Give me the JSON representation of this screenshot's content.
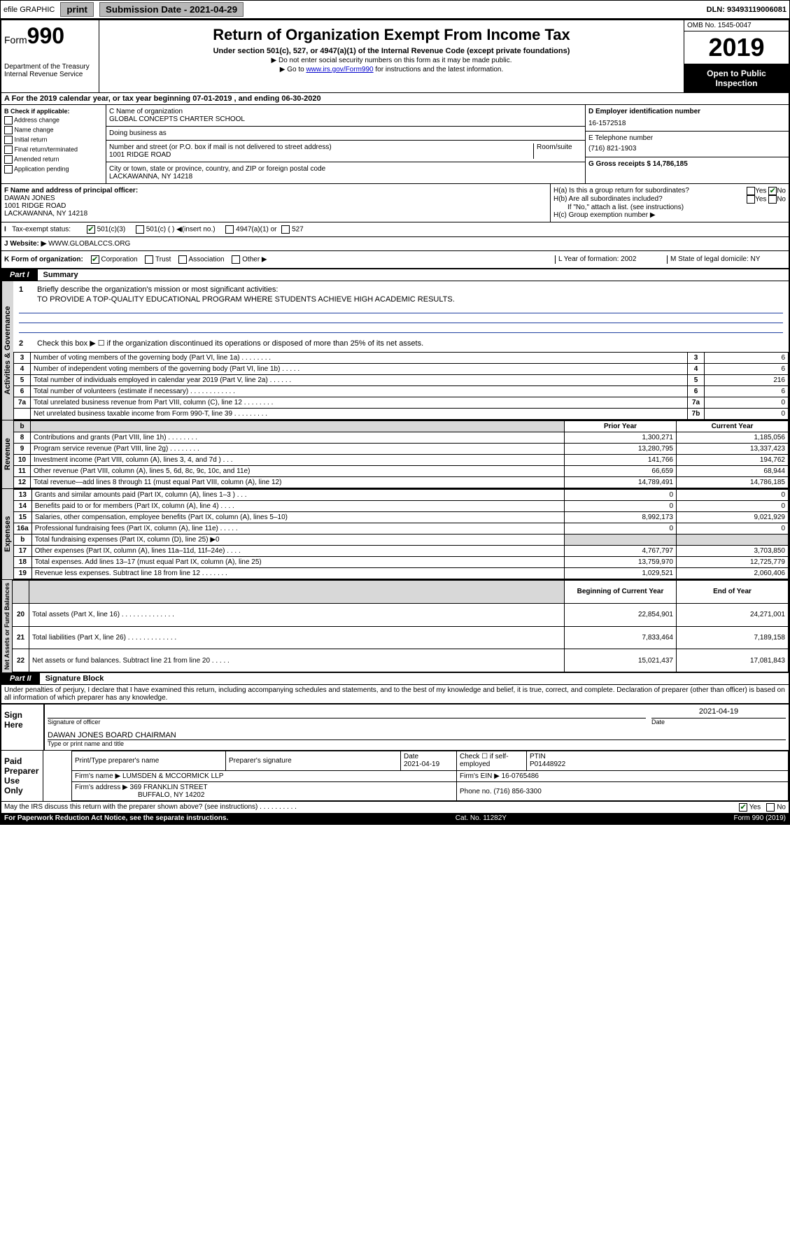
{
  "topbar": {
    "efile_label": "efile GRAPHIC",
    "print_label": "print",
    "submission_label": "Submission Date - 2021-04-29",
    "dln_label": "DLN: 93493119006081"
  },
  "header": {
    "form_prefix": "Form",
    "form_number": "990",
    "dept": "Department of the Treasury\nInternal Revenue Service",
    "title": "Return of Organization Exempt From Income Tax",
    "subtitle": "Under section 501(c), 527, or 4947(a)(1) of the Internal Revenue Code (except private foundations)",
    "note1": "▶ Do not enter social security numbers on this form as it may be made public.",
    "note2_prefix": "▶ Go to ",
    "note2_link": "www.irs.gov/Form990",
    "note2_suffix": " for instructions and the latest information.",
    "omb": "OMB No. 1545-0047",
    "year": "2019",
    "otp": "Open to Public Inspection"
  },
  "rowA": {
    "text": "A For the 2019 calendar year, or tax year beginning 07-01-2019   , and ending 06-30-2020"
  },
  "checkB": {
    "header": "B Check if applicable:",
    "items": [
      "Address change",
      "Name change",
      "Initial return",
      "Final return/terminated",
      "Amended return",
      "Application pending"
    ]
  },
  "colC": {
    "name_label": "C Name of organization",
    "name": "GLOBAL CONCEPTS CHARTER SCHOOL",
    "dba_label": "Doing business as",
    "addr_label": "Number and street (or P.O. box if mail is not delivered to street address)",
    "room_label": "Room/suite",
    "addr": "1001 RIDGE ROAD",
    "city_label": "City or town, state or province, country, and ZIP or foreign postal code",
    "city": "LACKAWANNA, NY  14218"
  },
  "colDE": {
    "d_label": "D Employer identification number",
    "d_val": "16-1572518",
    "e_label": "E Telephone number",
    "e_val": "(716) 821-1903",
    "g_label": "G Gross receipts $ 14,786,185"
  },
  "rowF": {
    "f_label": "F  Name and address of principal officer:",
    "f_name": "DAWAN JONES",
    "f_addr": "1001 RIDGE ROAD\nLACKAWANNA, NY  14218",
    "ha_label": "H(a)  Is this a group return for subordinates?",
    "hb_label": "H(b)  Are all subordinates included?",
    "hc_note": "If \"No,\" attach a list. (see instructions)",
    "hc_label": "H(c)  Group exemption number ▶",
    "yes": "Yes",
    "no": "No"
  },
  "rowI": {
    "label": "Tax-exempt status:",
    "opts": [
      "501(c)(3)",
      "501(c) (  ) ◀(insert no.)",
      "4947(a)(1) or",
      "527"
    ]
  },
  "rowJ": {
    "label": "J Website: ▶",
    "val": "WWW.GLOBALCCS.ORG"
  },
  "rowK": {
    "k_label": "K Form of organization:",
    "k_opts": [
      "Corporation",
      "Trust",
      "Association",
      "Other ▶"
    ],
    "l_label": "L Year of formation: 2002",
    "m_label": "M State of legal domicile: NY"
  },
  "part1": {
    "tab": "Part I",
    "title": "Summary"
  },
  "governance": {
    "label": "Activities & Governance",
    "q1_num": "1",
    "q1_text": "Briefly describe the organization's mission or most significant activities:",
    "q1_val": "TO PROVIDE A TOP-QUALITY EDUCATIONAL PROGRAM WHERE STUDENTS ACHIEVE HIGH ACADEMIC RESULTS.",
    "q2_num": "2",
    "q2_text": "Check this box ▶ ☐  if the organization discontinued its operations or disposed of more than 25% of its net assets.",
    "rows": [
      {
        "n": "3",
        "t": "Number of voting members of the governing body (Part VI, line 1a)  .     .     .     .     .     .     .     .",
        "b": "3",
        "v": "6"
      },
      {
        "n": "4",
        "t": "Number of independent voting members of the governing body (Part VI, line 1b)  .     .     .     .     .",
        "b": "4",
        "v": "6"
      },
      {
        "n": "5",
        "t": "Total number of individuals employed in calendar year 2019 (Part V, line 2a)  .     .     .     .     .     .",
        "b": "5",
        "v": "216"
      },
      {
        "n": "6",
        "t": "Total number of volunteers (estimate if necessary)  .     .     .     .     .     .     .     .     .     .     .     .",
        "b": "6",
        "v": "6"
      },
      {
        "n": "7a",
        "t": "Total unrelated business revenue from Part VIII, column (C), line 12  .     .     .     .     .     .     .     .",
        "b": "7a",
        "v": "0"
      },
      {
        "n": "",
        "t": "Net unrelated business taxable income from Form 990-T, line 39  .     .     .     .     .     .     .     .     .",
        "b": "7b",
        "v": "0"
      }
    ]
  },
  "revenue": {
    "label": "Revenue",
    "col_prior": "Prior Year",
    "col_current": "Current Year",
    "rows": [
      {
        "n": "8",
        "t": "Contributions and grants (Part VIII, line 1h)  .     .     .     .     .     .     .     .",
        "p": "1,300,271",
        "c": "1,185,056"
      },
      {
        "n": "9",
        "t": "Program service revenue (Part VIII, line 2g)  .     .     .     .     .     .     .     .",
        "p": "13,280,795",
        "c": "13,337,423"
      },
      {
        "n": "10",
        "t": "Investment income (Part VIII, column (A), lines 3, 4, and 7d )  .     .     .",
        "p": "141,766",
        "c": "194,762"
      },
      {
        "n": "11",
        "t": "Other revenue (Part VIII, column (A), lines 5, 6d, 8c, 9c, 10c, and 11e)",
        "p": "66,659",
        "c": "68,944"
      },
      {
        "n": "12",
        "t": "Total revenue—add lines 8 through 11 (must equal Part VIII, column (A), line 12)",
        "p": "14,789,491",
        "c": "14,786,185"
      }
    ]
  },
  "expenses": {
    "label": "Expenses",
    "rows": [
      {
        "n": "13",
        "t": "Grants and similar amounts paid (Part IX, column (A), lines 1–3 )  .     .     .",
        "p": "0",
        "c": "0"
      },
      {
        "n": "14",
        "t": "Benefits paid to or for members (Part IX, column (A), line 4)  .     .     .     .",
        "p": "0",
        "c": "0"
      },
      {
        "n": "15",
        "t": "Salaries, other compensation, employee benefits (Part IX, column (A), lines 5–10)",
        "p": "8,992,173",
        "c": "9,021,929"
      },
      {
        "n": "16a",
        "t": "Professional fundraising fees (Part IX, column (A), line 11e)  .     .     .     .     .",
        "p": "0",
        "c": "0"
      },
      {
        "n": "b",
        "t": "Total fundraising expenses (Part IX, column (D), line 25) ▶0",
        "p": "",
        "c": "",
        "gray": true
      },
      {
        "n": "17",
        "t": "Other expenses (Part IX, column (A), lines 11a–11d, 11f–24e)  .     .     .     .",
        "p": "4,767,797",
        "c": "3,703,850"
      },
      {
        "n": "18",
        "t": "Total expenses. Add lines 13–17 (must equal Part IX, column (A), line 25)",
        "p": "13,759,970",
        "c": "12,725,779"
      },
      {
        "n": "19",
        "t": "Revenue less expenses. Subtract line 18 from line 12  .     .     .     .     .     .     .",
        "p": "1,029,521",
        "c": "2,060,406"
      }
    ]
  },
  "netassets": {
    "label": "Net Assets or Fund Balances",
    "col_begin": "Beginning of Current Year",
    "col_end": "End of Year",
    "rows": [
      {
        "n": "20",
        "t": "Total assets (Part X, line 16)  .     .     .     .     .     .     .     .     .     .     .     .     .     .",
        "p": "22,854,901",
        "c": "24,271,001"
      },
      {
        "n": "21",
        "t": "Total liabilities (Part X, line 26)  .     .     .     .     .     .     .     .     .     .     .     .     .",
        "p": "7,833,464",
        "c": "7,189,158"
      },
      {
        "n": "22",
        "t": "Net assets or fund balances. Subtract line 21 from line 20  .     .     .     .     .",
        "p": "15,021,437",
        "c": "17,081,843"
      }
    ]
  },
  "part2": {
    "tab": "Part II",
    "title": "Signature Block",
    "perjury": "Under penalties of perjury, I declare that I have examined this return, including accompanying schedules and statements, and to the best of my knowledge and belief, it is true, correct, and complete. Declaration of preparer (other than officer) is based on all information of which preparer has any knowledge."
  },
  "sign": {
    "label": "Sign Here",
    "sig_label": "Signature of officer",
    "date": "2021-04-19",
    "date_label": "Date",
    "name": "DAWAN JONES BOARD CHAIRMAN",
    "name_label": "Type or print name and title"
  },
  "prep": {
    "label": "Paid Preparer Use Only",
    "h1": "Print/Type preparer's name",
    "h2": "Preparer's signature",
    "h3": "Date",
    "h3v": "2021-04-19",
    "h4": "Check ☐ if self-employed",
    "h5": "PTIN",
    "h5v": "P01448922",
    "firm_label": "Firm's name    ▶",
    "firm": "LUMSDEN & MCCORMICK LLP",
    "ein_label": "Firm's EIN ▶ 16-0765486",
    "addr_label": "Firm's address ▶",
    "addr": "369 FRANKLIN STREET",
    "addr2": "BUFFALO, NY  14202",
    "phone_label": "Phone no. (716) 856-3300"
  },
  "footer": {
    "discuss": "May the IRS discuss this return with the preparer shown above? (see instructions)  .     .     .     .     .     .     .     .     .     .",
    "yes": "Yes",
    "no": "No",
    "paperwork": "For Paperwork Reduction Act Notice, see the separate instructions.",
    "cat": "Cat. No. 11282Y",
    "form": "Form 990 (2019)"
  }
}
